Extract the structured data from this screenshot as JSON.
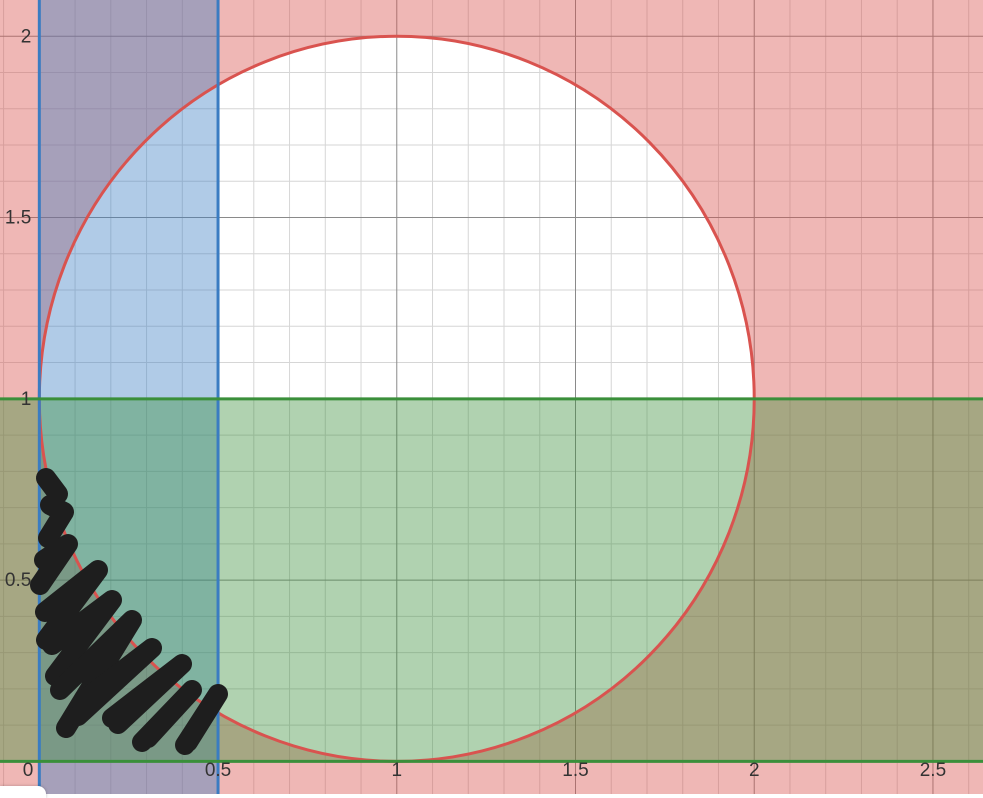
{
  "chart_data": {
    "type": "region-plot",
    "xlim": [
      -0.11,
      2.64
    ],
    "ylim": [
      -0.09,
      2.1
    ],
    "grid": true,
    "minor_step": 0.1,
    "major_step": 0.5,
    "x_ticks": [
      {
        "value": 0,
        "label": "0"
      },
      {
        "value": 0.5,
        "label": "0.5"
      },
      {
        "value": 1,
        "label": "1"
      },
      {
        "value": 1.5,
        "label": "1.5"
      },
      {
        "value": 2,
        "label": "2"
      },
      {
        "value": 2.5,
        "label": "2.5"
      }
    ],
    "y_ticks": [
      {
        "value": 0.5,
        "label": "0.5"
      },
      {
        "value": 1,
        "label": "1"
      },
      {
        "value": 1.5,
        "label": "1.5"
      },
      {
        "value": 2,
        "label": "2"
      }
    ],
    "circle": {
      "center": [
        1,
        1
      ],
      "radius": 1,
      "shading": "outside",
      "color": "#d9534f"
    },
    "vertical_band": {
      "x_min": 0,
      "x_max": 0.5,
      "color": "#3a7cc2"
    },
    "horizontal_band": {
      "y_min": 0,
      "y_max": 1,
      "color": "#3a8f3a"
    },
    "annotation": "black scribble marking region inside band 0<=x<=0.5, 0<=y<=1 but outside the circle"
  }
}
